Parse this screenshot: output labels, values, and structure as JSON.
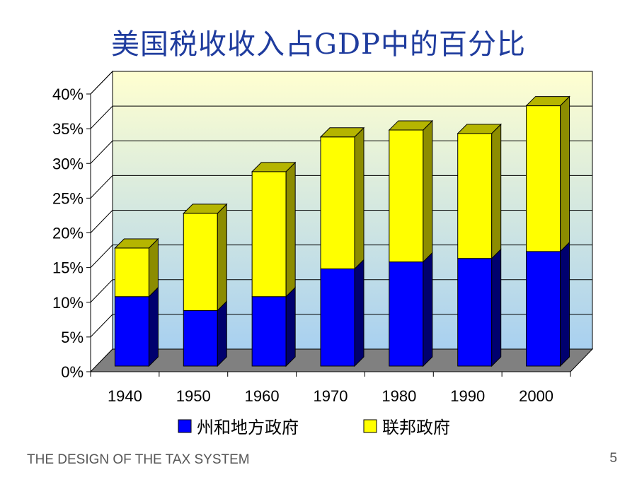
{
  "slide": {
    "title": "美国税收收入占GDP中的百分比",
    "footer": "THE DESIGN OF THE TAX SYSTEM",
    "page_number": "5"
  },
  "chart_data": {
    "type": "bar",
    "stacked": true,
    "three_d": true,
    "categories": [
      "1940",
      "1950",
      "1960",
      "1970",
      "1980",
      "1990",
      "2000"
    ],
    "series": [
      {
        "name": "州和地方政府",
        "values": [
          10,
          8,
          10,
          14,
          15,
          15.5,
          16.5
        ],
        "color": "#0000ff",
        "side_color": "#00006e",
        "top_color": "#00007a"
      },
      {
        "name": "联邦政府",
        "values": [
          7,
          14,
          18,
          19,
          19,
          18,
          21
        ],
        "color": "#ffff00",
        "side_color": "#8c8c00",
        "top_color": "#b5b500"
      }
    ],
    "ylim": [
      0,
      40
    ],
    "yticks": [
      "0%",
      "5%",
      "10%",
      "15%",
      "20%",
      "25%",
      "30%",
      "35%",
      "40%"
    ],
    "grid": true,
    "legend": "bottom",
    "floor_color": "#808080",
    "backwall_gradient": [
      "#ffffd0",
      "#a8d0f0"
    ]
  }
}
